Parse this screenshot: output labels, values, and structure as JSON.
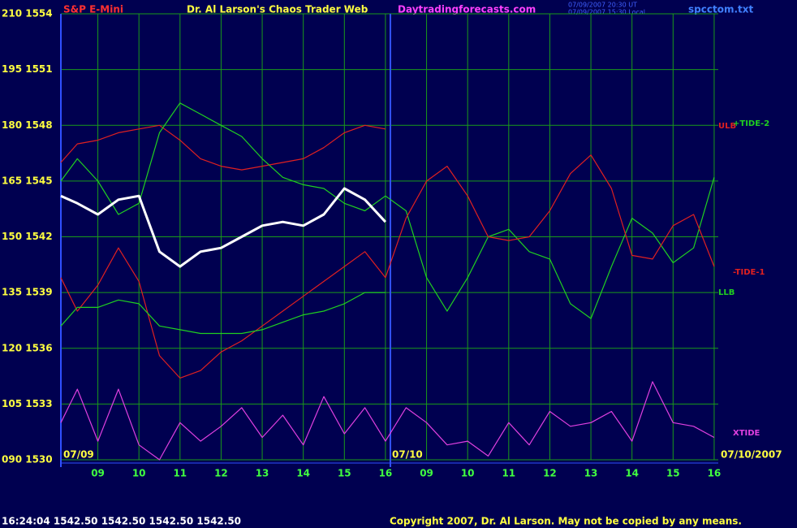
{
  "chart_data": {
    "type": "line",
    "instrument": "S&P E-Mini",
    "title": "Dr. Al Larson's Chaos Trader Web",
    "website": "Daytradingforecasts.com",
    "timestamps": [
      "07/09/2007 20:30 UT",
      "07/09/2007 15:30 Local"
    ],
    "file": "spcctom.txt",
    "date_labels": [
      "07/09",
      "07/10",
      "07/10/2007"
    ],
    "status": "16:24:04  1542.50  1542.50  1542.50  1542.50",
    "copyright": "Copyright 2007, Dr. Al Larson. May not be copied by any means.",
    "x": [
      8.1,
      8.5,
      9,
      9.5,
      10,
      10.5,
      11,
      11.5,
      12,
      12.5,
      13,
      13.5,
      14,
      14.5,
      15,
      15.5,
      16,
      16.5,
      17,
      17.5,
      18,
      18.5,
      19,
      19.5,
      20,
      20.5,
      21,
      21.5,
      22,
      22.5,
      23,
      23.5,
      24
    ],
    "xlim": [
      8.1,
      24.1
    ],
    "xticks": [
      {
        "value": 9,
        "label": "09"
      },
      10,
      11,
      12,
      13,
      14,
      15,
      16,
      {
        "value": 17,
        "label": "09"
      },
      {
        "value": 18,
        "label": "10"
      },
      {
        "value": 19,
        "label": "11"
      },
      {
        "value": 20,
        "label": "12"
      },
      {
        "value": 21,
        "label": "13"
      },
      {
        "value": 22,
        "label": "14"
      },
      {
        "value": 23,
        "label": "15"
      },
      {
        "value": 24,
        "label": "16"
      }
    ],
    "ylim": [
      90,
      210
    ],
    "yticks": [
      {
        "value": 210,
        "label": "210 1554"
      },
      {
        "value": 195,
        "label": "195 1551"
      },
      {
        "value": 180,
        "label": "180 1548"
      },
      {
        "value": 165,
        "label": "165 1545"
      },
      {
        "value": 150,
        "label": "150 1542"
      },
      {
        "value": 135,
        "label": "135 1539"
      },
      {
        "value": 120,
        "label": "120 1536"
      },
      {
        "value": 105,
        "label": "105 1533"
      },
      {
        "value": 90,
        "label": "090 1530"
      }
    ],
    "grid": true,
    "series": [
      {
        "name": "ULB",
        "color": "#e02020",
        "values": [
          170,
          175,
          176,
          178,
          179,
          180,
          176,
          171,
          169,
          168,
          169,
          170,
          171,
          174,
          178,
          180,
          179,
          null,
          null,
          null,
          null,
          null,
          null,
          null,
          null,
          null,
          null,
          null,
          null,
          null,
          null,
          null,
          null
        ]
      },
      {
        "name": "+TIDE-2",
        "color": "#20d020",
        "values": [
          165,
          171,
          165,
          156,
          159,
          178,
          186,
          183,
          180,
          177,
          171,
          166,
          164,
          163,
          159,
          157,
          161,
          157,
          139,
          130,
          139,
          150,
          152,
          146,
          144,
          132,
          128,
          142,
          155,
          151,
          143,
          147,
          166
        ]
      },
      {
        "name": "-TIDE-1",
        "color": "#e02020",
        "values": [
          139,
          130,
          137,
          147,
          138,
          118,
          112,
          114,
          119,
          122,
          126,
          130,
          134,
          138,
          142,
          146,
          139,
          155,
          165,
          169,
          161,
          150,
          149,
          150,
          157,
          167,
          172,
          163,
          145,
          144,
          153,
          156,
          142
        ]
      },
      {
        "name": "LLB",
        "color": "#20d020",
        "values": [
          126,
          131,
          131,
          133,
          132,
          126,
          125,
          124,
          124,
          124,
          125,
          127,
          129,
          130,
          132,
          135,
          135,
          null,
          null,
          null,
          null,
          null,
          null,
          null,
          null,
          null,
          null,
          null,
          null,
          null,
          null,
          null,
          null
        ]
      },
      {
        "name": "XTIDE",
        "color": "#e040e0",
        "values": [
          100,
          109,
          95,
          109,
          94,
          90,
          100,
          95,
          99,
          104,
          96,
          102,
          94,
          107,
          97,
          104,
          95,
          104,
          100,
          94,
          95,
          91,
          100,
          94,
          103,
          99,
          100,
          103,
          95,
          111,
          100,
          99,
          96
        ]
      },
      {
        "color": "#ffffff",
        "values": [
          161,
          159,
          156,
          160,
          161,
          146,
          142,
          146,
          147,
          150,
          153,
          154,
          153,
          156,
          163,
          160,
          154,
          null,
          null,
          null,
          null,
          null,
          null,
          null,
          null,
          null,
          null,
          null,
          null,
          null,
          null,
          null,
          null
        ]
      }
    ]
  }
}
